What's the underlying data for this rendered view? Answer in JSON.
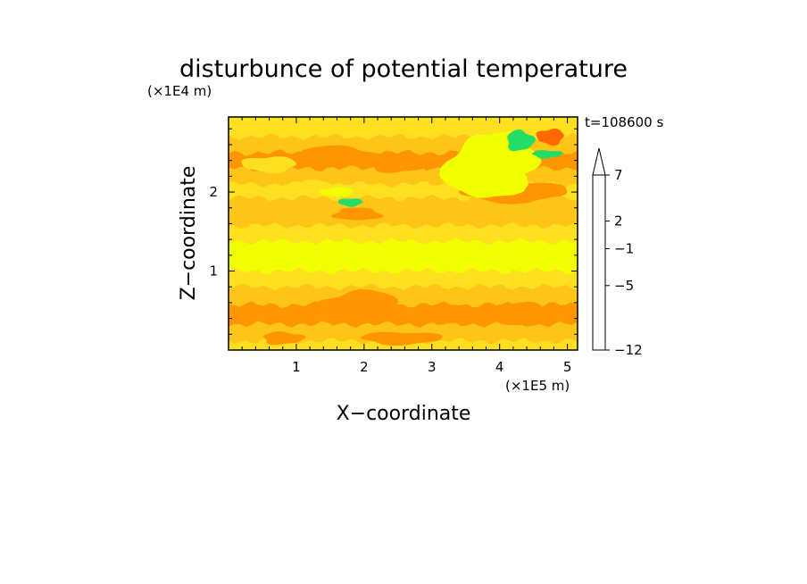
{
  "chart_data": {
    "type": "heatmap",
    "title": "disturbunce of potential temperature",
    "xlabel": "X−coordinate",
    "ylabel": "Z−coordinate",
    "x_unit": "(×1E5 m)",
    "y_unit": "(×1E4 m)",
    "time_label": "t=108600 s",
    "xlim": [
      0,
      5.15
    ],
    "ylim": [
      0,
      2.95
    ],
    "x_ticks": [
      1,
      2,
      3,
      4,
      5
    ],
    "y_ticks": [
      1,
      2
    ],
    "colorbar": {
      "levels": [
        -12,
        -11,
        -10,
        -9,
        -8,
        -7,
        -6,
        -5,
        -4,
        -3,
        -2,
        -1,
        0,
        1,
        2,
        3,
        4,
        5,
        6,
        7,
        8,
        9,
        10
      ],
      "tick_labels": [
        "−12",
        "−5",
        "−1",
        "2",
        "7"
      ],
      "tick_values": [
        -12,
        -5,
        -1,
        2,
        7
      ],
      "colors": [
        "#ff00c8",
        "#c8009b",
        "#a000c8",
        "#6a00c8",
        "#0000c0",
        "#0030d6",
        "#00b4ff",
        "#00f0ff",
        "#22dd66",
        "#00ff7a",
        "#f2ff00",
        "#ffe020",
        "#ffc418",
        "#ff9600",
        "#ff6a00",
        "#e81000",
        "#ff6a6a",
        "#ffa8a8",
        "#ffcaca"
      ],
      "extend": "max"
    },
    "rows": [
      {
        "z": 0.03,
        "value": -0.5
      },
      {
        "z": 0.2,
        "value": 0.5
      },
      {
        "z": 0.45,
        "value": 1.5
      },
      {
        "z": 0.7,
        "value": 0.5
      },
      {
        "z": 0.9,
        "value": -0.5
      },
      {
        "z": 1.1,
        "value": -1.5
      },
      {
        "z": 1.25,
        "value": -1.5
      },
      {
        "z": 1.5,
        "value": -0.5
      },
      {
        "z": 1.65,
        "value": 0.5
      },
      {
        "z": 1.85,
        "value": 0.5
      },
      {
        "z": 2.0,
        "value": -0.5
      },
      {
        "z": 2.2,
        "value": 0.5
      },
      {
        "z": 2.4,
        "value": 1.5
      },
      {
        "z": 2.6,
        "value": 0.5
      },
      {
        "z": 2.8,
        "value": -0.5
      }
    ],
    "features": [
      {
        "x": 1.9,
        "z": 1.72,
        "rx": 0.35,
        "rz": 0.08,
        "value": 1.5
      },
      {
        "x": 1.6,
        "z": 2.45,
        "rx": 0.6,
        "rz": 0.13,
        "value": 1.5
      },
      {
        "x": 2.5,
        "z": 2.35,
        "rx": 0.45,
        "rz": 0.1,
        "value": 1.5
      },
      {
        "x": 4.2,
        "z": 2.0,
        "rx": 0.8,
        "rz": 0.13,
        "value": 1.5
      },
      {
        "x": 4.75,
        "z": 2.7,
        "rx": 0.2,
        "rz": 0.1,
        "value": 2.5
      },
      {
        "x": 1.95,
        "z": 0.55,
        "rx": 0.6,
        "rz": 0.2,
        "value": 1.5
      },
      {
        "x": 3.25,
        "z": 0.45,
        "rx": 0.4,
        "rz": 0.12,
        "value": 1.5
      },
      {
        "x": 4.4,
        "z": 0.45,
        "rx": 0.4,
        "rz": 0.15,
        "value": 1.5
      },
      {
        "x": 0.8,
        "z": 0.15,
        "rx": 0.3,
        "rz": 0.08,
        "value": 1.5
      },
      {
        "x": 2.55,
        "z": 0.15,
        "rx": 0.6,
        "rz": 0.08,
        "value": 1.5
      },
      {
        "x": 0.6,
        "z": 2.35,
        "rx": 0.4,
        "rz": 0.1,
        "value": -0.5
      },
      {
        "x": 1.2,
        "z": 2.05,
        "rx": 0.35,
        "rz": 0.1,
        "value": -0.5
      },
      {
        "x": 3.8,
        "z": 2.3,
        "rx": 0.6,
        "rz": 0.4,
        "value": -1.5
      },
      {
        "x": 4.1,
        "z": 2.45,
        "rx": 0.45,
        "rz": 0.3,
        "value": -1.5
      },
      {
        "x": 4.3,
        "z": 2.65,
        "rx": 0.2,
        "rz": 0.13,
        "value": -3.5
      },
      {
        "x": 4.7,
        "z": 2.48,
        "rx": 0.22,
        "rz": 0.05,
        "value": -3.5
      },
      {
        "x": 1.8,
        "z": 1.87,
        "rx": 0.18,
        "rz": 0.05,
        "value": -3.5
      },
      {
        "x": 1.6,
        "z": 2.0,
        "rx": 0.25,
        "rz": 0.06,
        "value": -1.5
      }
    ]
  }
}
